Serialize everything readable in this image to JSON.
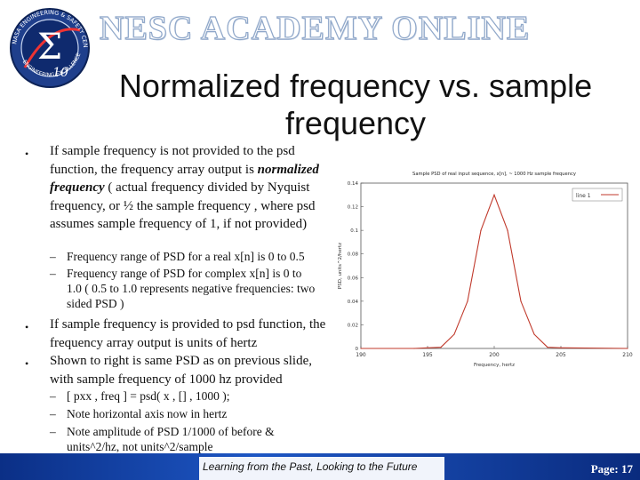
{
  "header": {
    "banner_text": "NESC ACADEMY ONLINE",
    "logo": {
      "ring_text_top": "NASA ENGINEERING & SAFETY CENTER",
      "ring_text_bottom": "ENGINEERING EXCELLENCE",
      "mark": "Σ",
      "mark_sub": "10"
    }
  },
  "slide": {
    "title": "Normalized frequency vs. sample frequency",
    "bullets": [
      {
        "text_before": "If sample frequency is not provided to the psd function, the frequency array output is ",
        "emphasis": "normalized frequency",
        "text_after": " ( actual frequency divided by Nyquist frequency, or ½ the sample frequency , where psd assumes sample frequency of 1, if not provided)",
        "subs": [
          "Frequency range of PSD for a real x[n] is 0 to 0.5",
          "Frequency range of PSD for complex x[n] is 0 to 1.0 ( 0.5 to 1.0 represents negative frequencies: two sided PSD )"
        ]
      },
      {
        "text": "If sample frequency is provided to psd function, the frequency array output is units of hertz"
      },
      {
        "text": "Shown to right is same PSD as on previous slide, with sample frequency of 1000 hz provided",
        "subs": [
          "[ pxx , freq ] = psd( x , [] , 1000 );",
          "Note horizontal axis now in hertz",
          "Note amplitude of PSD 1/1000 of before & units^2/hz, not units^2/sample"
        ]
      }
    ],
    "bullet_symbol": "•",
    "dash_symbol": "–"
  },
  "footer": {
    "tagline": "Learning from the Past, Looking to the Future",
    "page": "Page: 17"
  },
  "colors": {
    "footer_bar": "#1d4fb8",
    "curve": "#c0392b",
    "banner_outline": "#8fa7c9"
  },
  "chart_data": {
    "type": "line",
    "title": "Sample PSD of real input sequence, x[n], ~ 1000 Hz sample frequency",
    "xlabel": "Frequency, hertz",
    "ylabel": "PSD, units^2/hertz",
    "xlim": [
      190,
      210
    ],
    "ylim": [
      0,
      0.14
    ],
    "xticks": [
      "190",
      "195",
      "200",
      "205",
      "210"
    ],
    "yticks": [
      "0",
      "0.02",
      "0.04",
      "0.06",
      "0.08",
      "0.1",
      "0.12",
      "0.14"
    ],
    "legend": "line 1",
    "legend_position": "top-right",
    "grid": false,
    "series": [
      {
        "name": "line 1",
        "x": [
          190,
          194,
          195,
          196,
          197,
          198,
          199,
          200,
          201,
          202,
          203,
          204,
          205,
          210
        ],
        "y": [
          0,
          0,
          0.0005,
          0.001,
          0.012,
          0.04,
          0.1,
          0.13,
          0.1,
          0.04,
          0.012,
          0.001,
          0.0005,
          0
        ]
      }
    ]
  }
}
